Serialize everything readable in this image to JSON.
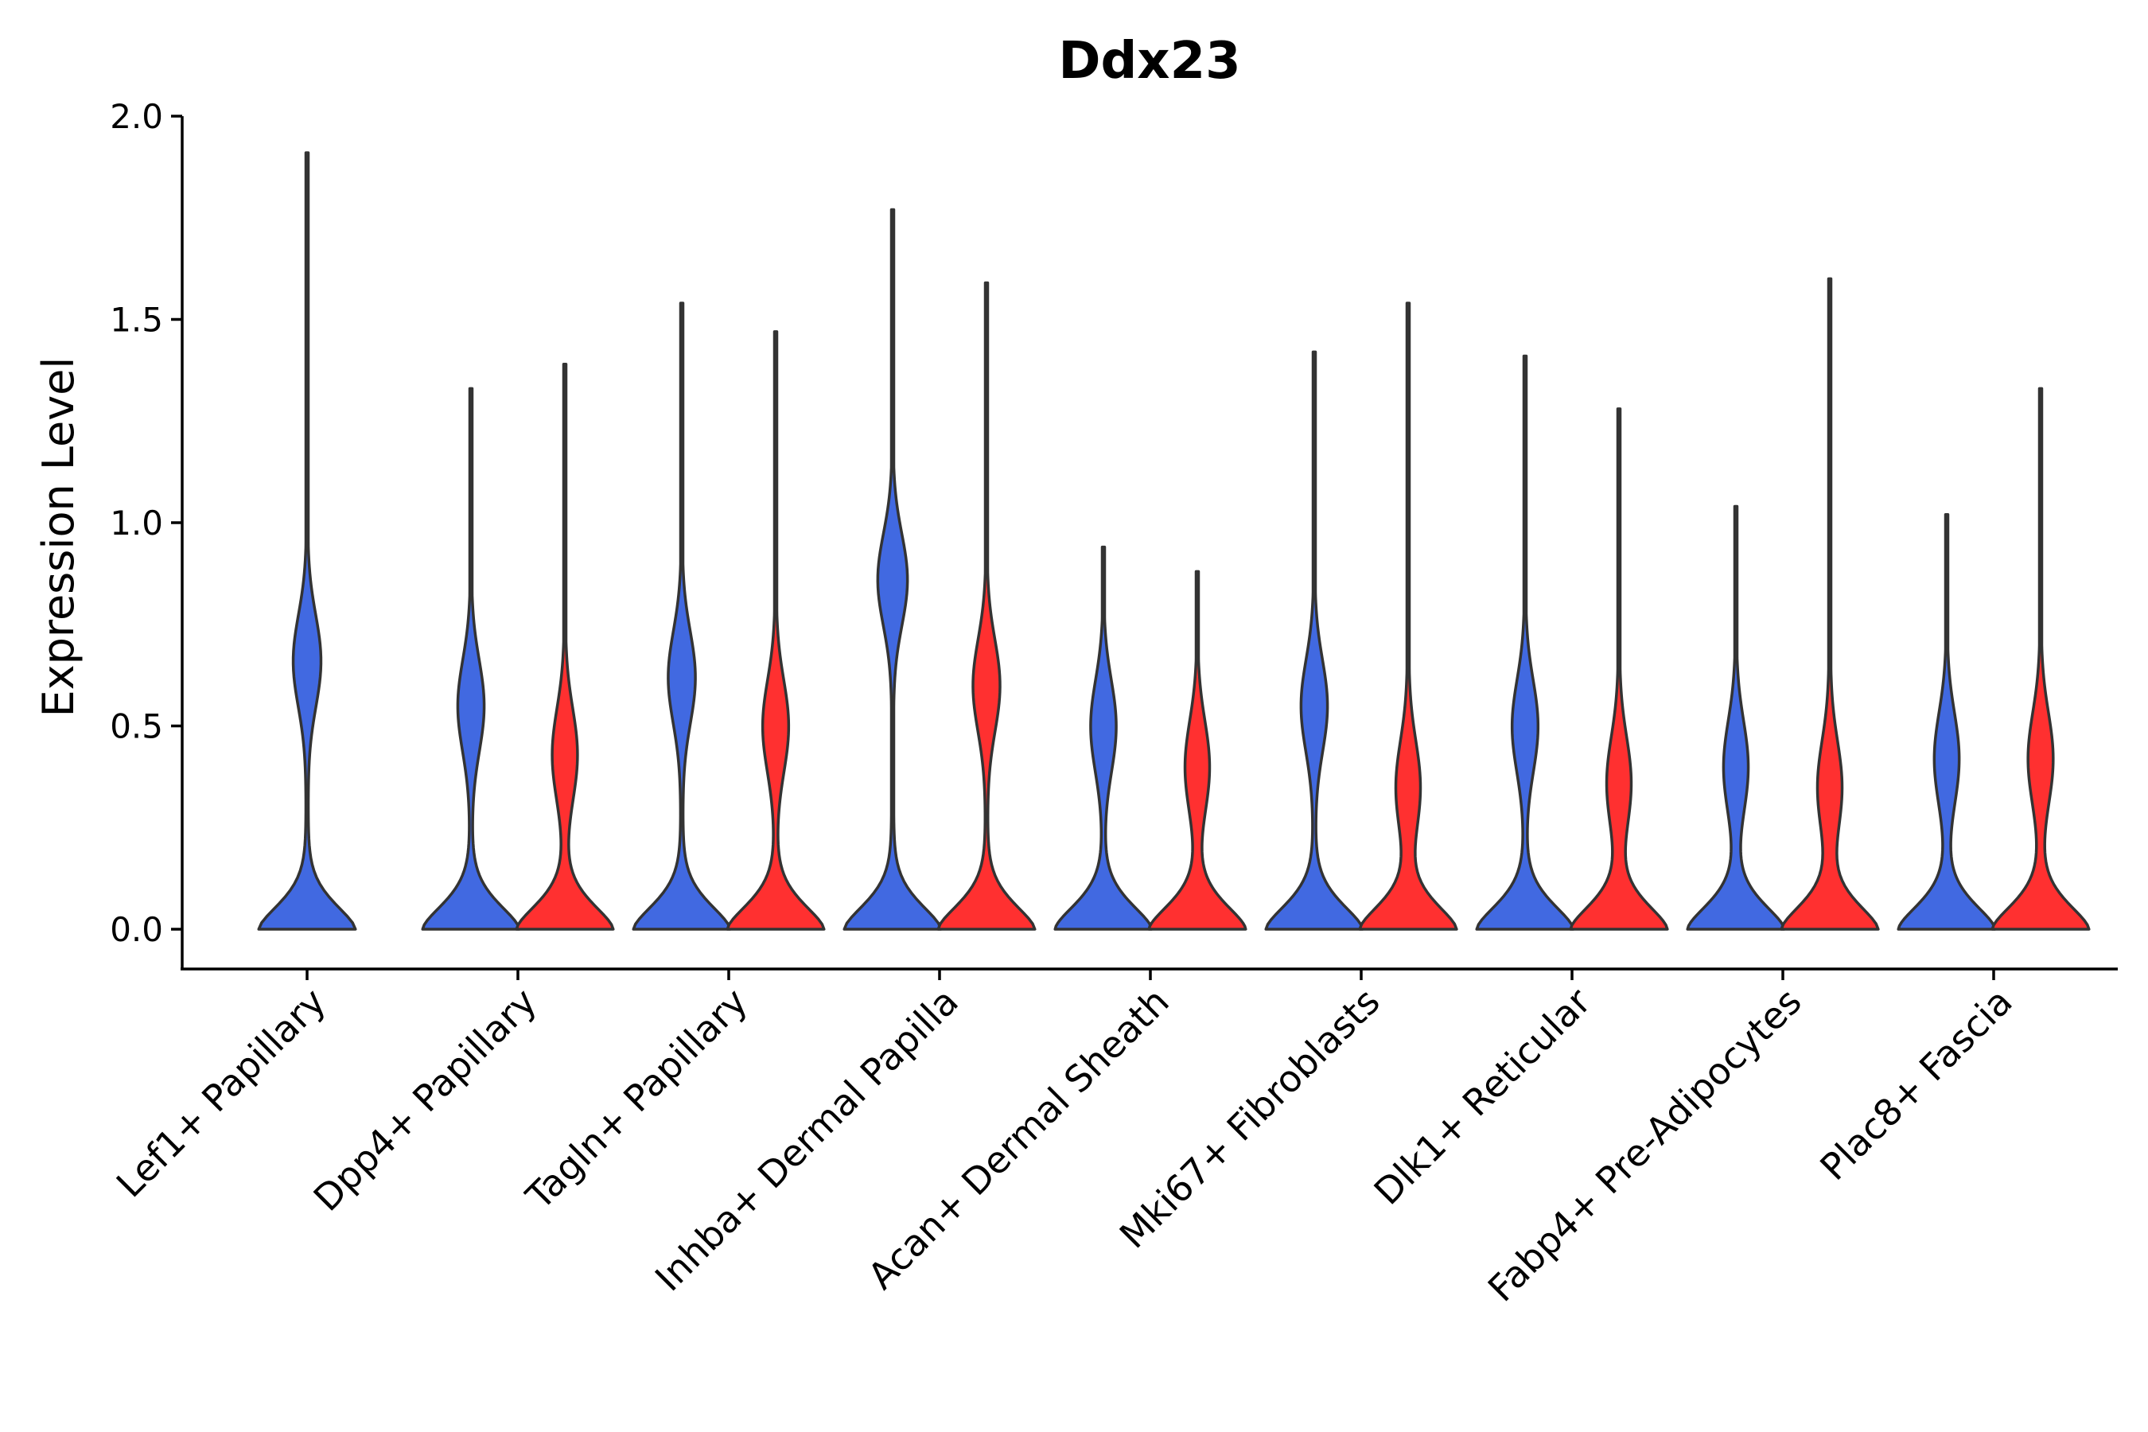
{
  "chart_data": {
    "type": "violin",
    "title": "Ddx23",
    "xlabel": "",
    "ylabel": "Expression Level",
    "ylim": [
      -0.095,
      2.0
    ],
    "yticks": [
      0.0,
      0.5,
      1.0,
      1.5,
      2.0
    ],
    "ytick_labels": [
      "0.0",
      "0.5",
      "1.0",
      "1.5",
      "2.0"
    ],
    "categories": [
      "Lef1+ Papillary",
      "Dpp4+ Papillary",
      "Tagln+ Papillary",
      "Inhba+ Dermal Papilla",
      "Acan+ Dermal Sheath",
      "Mki67+ Fibroblasts",
      "Dlk1+ Reticular",
      "Fabp4+ Pre-Adipocytes",
      "Plac8+ Fascia"
    ],
    "series": [
      {
        "name": "group-1",
        "color": "#4169E1",
        "max_values": [
          1.91,
          1.33,
          1.54,
          1.77,
          0.94,
          1.42,
          1.41,
          1.04,
          1.02
        ],
        "secondary_mode": [
          0.66,
          0.55,
          0.62,
          0.86,
          0.5,
          0.55,
          0.5,
          0.4,
          0.42
        ]
      },
      {
        "name": "group-2",
        "color": "#FF3030",
        "max_values": [
          null,
          1.39,
          1.47,
          1.59,
          0.88,
          1.54,
          1.28,
          1.6,
          1.33
        ],
        "secondary_mode": [
          null,
          0.43,
          0.5,
          0.6,
          0.4,
          0.35,
          0.36,
          0.35,
          0.42
        ]
      }
    ]
  }
}
